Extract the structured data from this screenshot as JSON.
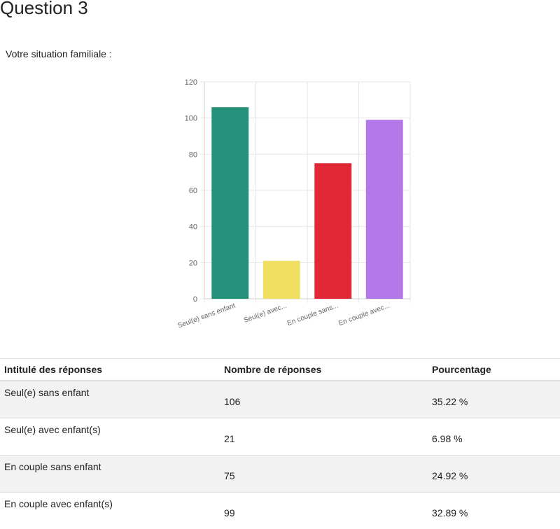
{
  "page": {
    "title": "Question 3",
    "question": "Votre situation familiale :"
  },
  "chart_data": {
    "type": "bar",
    "title": "",
    "xlabel": "",
    "ylabel": "",
    "ylim": [
      0,
      120
    ],
    "yticks": [
      0,
      20,
      40,
      60,
      80,
      100,
      120
    ],
    "categories": [
      "Seul(e) sans enfant",
      "Seul(e) avec...",
      "En couple sans...",
      "En couple avec..."
    ],
    "values": [
      106,
      21,
      75,
      99
    ],
    "colors": [
      "#24927a",
      "#f0de62",
      "#e22736",
      "#b477e8"
    ],
    "grid": true,
    "legend": "none"
  },
  "table": {
    "headers": [
      "Intitulé des réponses",
      "Nombre de réponses",
      "Pourcentage"
    ],
    "rows": [
      {
        "label": "Seul(e) sans enfant",
        "count": "106",
        "percent": "35.22 %"
      },
      {
        "label": "Seul(e) avec enfant(s)",
        "count": "21",
        "percent": "6.98 %"
      },
      {
        "label": "En couple sans enfant",
        "count": "75",
        "percent": "24.92 %"
      },
      {
        "label": "En couple avec enfant(s)",
        "count": "99",
        "percent": "32.89 %"
      }
    ]
  }
}
